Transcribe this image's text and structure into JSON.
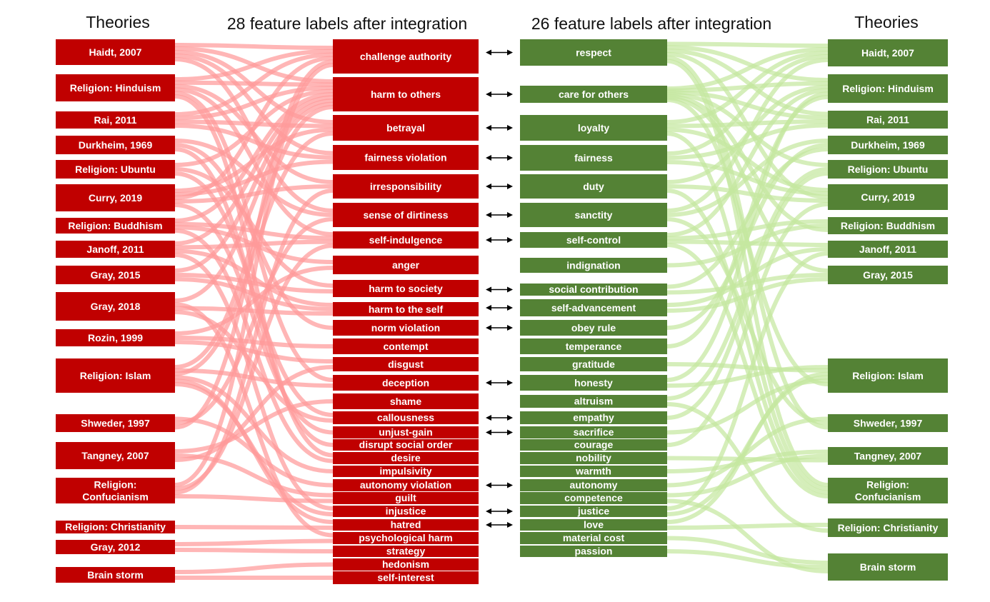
{
  "headers": {
    "left_theories": "Theories",
    "left_features": "28 feature labels after integration",
    "right_features": "26 feature labels after integration",
    "right_theories": "Theories"
  },
  "colors": {
    "red_box": "#c00000",
    "green_box": "#548235",
    "red_link": "#ff9a9a",
    "green_link": "#c5e8a0",
    "arrow": "#000000"
  },
  "left_theories": [
    "Haidt, 2007",
    "Religion: Hinduism",
    "Rai, 2011",
    "Durkheim, 1969",
    "Religion: Ubuntu",
    "Curry, 2019",
    "Religion: Buddhism",
    "Janoff, 2011",
    "Gray, 2015",
    "Gray, 2018",
    "Rozin, 1999",
    "Religion: Islam",
    "Shweder, 1997",
    "Tangney, 2007",
    "Religion: Confucianism",
    "Religion: Christianity",
    "Gray, 2012",
    "Brain storm"
  ],
  "negative_features": [
    "challenge authority",
    "harm to others",
    "betrayal",
    "fairness violation",
    "irresponsibility",
    "sense of dirtiness",
    "self-indulgence",
    "anger",
    "harm to society",
    "harm to the self",
    "norm violation",
    "contempt",
    "disgust",
    "deception",
    "shame",
    "callousness",
    "unjust-gain",
    "disrupt social order",
    "desire",
    "impulsivity",
    "autonomy violation",
    "guilt",
    "injustice",
    "hatred",
    "psychological harm",
    "strategy",
    "hedonism",
    "self-interest"
  ],
  "positive_features": [
    "respect",
    "care for others",
    "loyalty",
    "fairness",
    "duty",
    "sanctity",
    "self-control",
    "indignation",
    "social contribution",
    "self-advancement",
    "obey rule",
    "temperance",
    "gratitude",
    "honesty",
    "altruism",
    "empathy",
    "sacrifice",
    "courage",
    "nobility",
    "warmth",
    "autonomy",
    "competence",
    "justice",
    "love",
    "material cost",
    "passion"
  ],
  "right_theories": [
    "Haidt, 2007",
    "Religion: Hinduism",
    "Rai, 2011",
    "Durkheim, 1969",
    "Religion: Ubuntu",
    "Curry, 2019",
    "Religion: Buddhism",
    "Janoff, 2011",
    "Gray, 2015",
    "Religion: Islam",
    "Shweder, 1997",
    "Tangney, 2007",
    "Religion: Confucianism",
    "Religion: Christianity",
    "Brain storm"
  ],
  "paired_features": [
    [
      "challenge authority",
      "respect"
    ],
    [
      "harm to others",
      "care for others"
    ],
    [
      "betrayal",
      "loyalty"
    ],
    [
      "fairness violation",
      "fairness"
    ],
    [
      "irresponsibility",
      "duty"
    ],
    [
      "sense of dirtiness",
      "sanctity"
    ],
    [
      "self-indulgence",
      "self-control"
    ],
    [
      "harm to society",
      "social contribution"
    ],
    [
      "harm to the self",
      "self-advancement"
    ],
    [
      "norm violation",
      "obey rule"
    ],
    [
      "deception",
      "honesty"
    ],
    [
      "callousness",
      "empathy"
    ],
    [
      "unjust-gain",
      "sacrifice"
    ],
    [
      "autonomy violation",
      "autonomy"
    ],
    [
      "injustice",
      "justice"
    ],
    [
      "hatred",
      "love"
    ]
  ],
  "left_links": [
    [
      "Haidt, 2007",
      "challenge authority"
    ],
    [
      "Haidt, 2007",
      "harm to others"
    ],
    [
      "Haidt, 2007",
      "betrayal"
    ],
    [
      "Haidt, 2007",
      "fairness violation"
    ],
    [
      "Haidt, 2007",
      "sense of dirtiness"
    ],
    [
      "Religion: Hinduism",
      "challenge authority"
    ],
    [
      "Religion: Hinduism",
      "harm to others"
    ],
    [
      "Religion: Hinduism",
      "irresponsibility"
    ],
    [
      "Religion: Hinduism",
      "self-indulgence"
    ],
    [
      "Religion: Hinduism",
      "deception"
    ],
    [
      "Religion: Hinduism",
      "desire"
    ],
    [
      "Rai, 2011",
      "challenge authority"
    ],
    [
      "Rai, 2011",
      "harm to others"
    ],
    [
      "Rai, 2011",
      "betrayal"
    ],
    [
      "Rai, 2011",
      "fairness violation"
    ],
    [
      "Durkheim, 1969",
      "sense of dirtiness"
    ],
    [
      "Durkheim, 1969",
      "norm violation"
    ],
    [
      "Durkheim, 1969",
      "disrupt social order"
    ],
    [
      "Religion: Ubuntu",
      "harm to others"
    ],
    [
      "Religion: Ubuntu",
      "harm to society"
    ],
    [
      "Religion: Ubuntu",
      "callousness"
    ],
    [
      "Curry, 2019",
      "betrayal"
    ],
    [
      "Curry, 2019",
      "fairness violation"
    ],
    [
      "Curry, 2019",
      "challenge authority"
    ],
    [
      "Curry, 2019",
      "irresponsibility"
    ],
    [
      "Curry, 2019",
      "unjust-gain"
    ],
    [
      "Religion: Buddhism",
      "harm to others"
    ],
    [
      "Religion: Buddhism",
      "self-indulgence"
    ],
    [
      "Religion: Buddhism",
      "anger"
    ],
    [
      "Religion: Buddhism",
      "desire"
    ],
    [
      "Janoff, 2011",
      "harm to others"
    ],
    [
      "Janoff, 2011",
      "self-indulgence"
    ],
    [
      "Janoff, 2011",
      "harm to the self"
    ],
    [
      "Janoff, 2011",
      "injustice"
    ],
    [
      "Gray, 2015",
      "harm to others"
    ],
    [
      "Gray, 2015",
      "harm to society"
    ],
    [
      "Gray, 2015",
      "harm to the self"
    ],
    [
      "Gray, 2018",
      "harm to others"
    ],
    [
      "Gray, 2018",
      "psychological harm"
    ],
    [
      "Gray, 2018",
      "harm to the self"
    ],
    [
      "Gray, 2018",
      "callousness"
    ],
    [
      "Rozin, 1999",
      "anger"
    ],
    [
      "Rozin, 1999",
      "contempt"
    ],
    [
      "Rozin, 1999",
      "disgust"
    ],
    [
      "Religion: Islam",
      "harm to others"
    ],
    [
      "Religion: Islam",
      "deception"
    ],
    [
      "Religion: Islam",
      "betrayal"
    ],
    [
      "Religion: Islam",
      "impulsivity"
    ],
    [
      "Religion: Islam",
      "hatred"
    ],
    [
      "Religion: Islam",
      "injustice"
    ],
    [
      "Shweder, 1997",
      "autonomy violation"
    ],
    [
      "Shweder, 1997",
      "sense of dirtiness"
    ],
    [
      "Shweder, 1997",
      "challenge authority"
    ],
    [
      "Tangney, 2007",
      "shame"
    ],
    [
      "Tangney, 2007",
      "guilt"
    ],
    [
      "Tangney, 2007",
      "disgust"
    ],
    [
      "Religion: Confucianism",
      "challenge authority"
    ],
    [
      "Religion: Confucianism",
      "self-indulgence"
    ],
    [
      "Religion: Confucianism",
      "irresponsibility"
    ],
    [
      "Religion: Confucianism",
      "guilt"
    ],
    [
      "Religion: Christianity",
      "hatred"
    ],
    [
      "Gray, 2012",
      "psychological harm"
    ],
    [
      "Gray, 2012",
      "strategy"
    ],
    [
      "Brain storm",
      "hedonism"
    ],
    [
      "Brain storm",
      "self-interest"
    ]
  ],
  "right_links": [
    [
      "respect",
      "Haidt, 2007"
    ],
    [
      "care for others",
      "Haidt, 2007"
    ],
    [
      "loyalty",
      "Haidt, 2007"
    ],
    [
      "fairness",
      "Haidt, 2007"
    ],
    [
      "sanctity",
      "Haidt, 2007"
    ],
    [
      "respect",
      "Religion: Hinduism"
    ],
    [
      "care for others",
      "Religion: Hinduism"
    ],
    [
      "duty",
      "Religion: Hinduism"
    ],
    [
      "self-control",
      "Religion: Hinduism"
    ],
    [
      "honesty",
      "Religion: Hinduism"
    ],
    [
      "temperance",
      "Religion: Hinduism"
    ],
    [
      "respect",
      "Rai, 2011"
    ],
    [
      "care for others",
      "Rai, 2011"
    ],
    [
      "loyalty",
      "Rai, 2011"
    ],
    [
      "fairness",
      "Rai, 2011"
    ],
    [
      "sanctity",
      "Durkheim, 1969"
    ],
    [
      "obey rule",
      "Durkheim, 1969"
    ],
    [
      "social contribution",
      "Durkheim, 1969"
    ],
    [
      "care for others",
      "Religion: Ubuntu"
    ],
    [
      "altruism",
      "Religion: Ubuntu"
    ],
    [
      "empathy",
      "Religion: Ubuntu"
    ],
    [
      "loyalty",
      "Curry, 2019"
    ],
    [
      "fairness",
      "Curry, 2019"
    ],
    [
      "respect",
      "Curry, 2019"
    ],
    [
      "duty",
      "Curry, 2019"
    ],
    [
      "courage",
      "Curry, 2019"
    ],
    [
      "self-control",
      "Religion: Buddhism"
    ],
    [
      "indignation",
      "Religion: Buddhism"
    ],
    [
      "care for others",
      "Religion: Buddhism"
    ],
    [
      "self-control",
      "Janoff, 2011"
    ],
    [
      "self-advancement",
      "Janoff, 2011"
    ],
    [
      "justice",
      "Janoff, 2011"
    ],
    [
      "care for others",
      "Gray, 2015"
    ],
    [
      "social contribution",
      "Gray, 2015"
    ],
    [
      "self-advancement",
      "Gray, 2015"
    ],
    [
      "honesty",
      "Religion: Islam"
    ],
    [
      "gratitude",
      "Religion: Islam"
    ],
    [
      "love",
      "Religion: Islam"
    ],
    [
      "justice",
      "Religion: Islam"
    ],
    [
      "sacrifice",
      "Religion: Islam"
    ],
    [
      "care for others",
      "Religion: Islam"
    ],
    [
      "autonomy",
      "Shweder, 1997"
    ],
    [
      "sanctity",
      "Shweder, 1997"
    ],
    [
      "respect",
      "Shweder, 1997"
    ],
    [
      "warmth",
      "Tangney, 2007"
    ],
    [
      "competence",
      "Tangney, 2007"
    ],
    [
      "nobility",
      "Tangney, 2007"
    ],
    [
      "respect",
      "Religion: Confucianism"
    ],
    [
      "loyalty",
      "Religion: Confucianism"
    ],
    [
      "duty",
      "Religion: Confucianism"
    ],
    [
      "self-control",
      "Religion: Confucianism"
    ],
    [
      "love",
      "Religion: Christianity"
    ],
    [
      "altruism",
      "Religion: Christianity"
    ],
    [
      "material cost",
      "Brain storm"
    ],
    [
      "passion",
      "Brain storm"
    ],
    [
      "competence",
      "Brain storm"
    ]
  ]
}
